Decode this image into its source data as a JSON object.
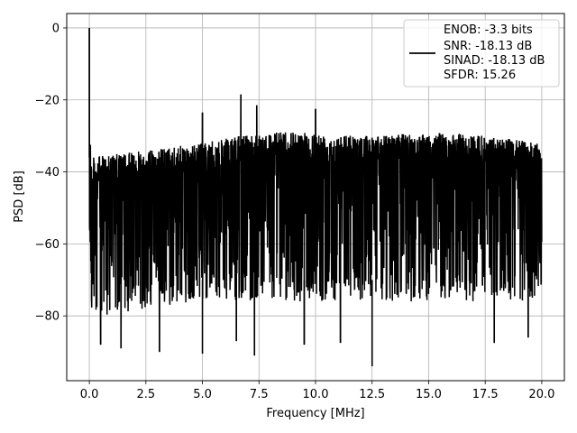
{
  "chart_data": {
    "type": "line",
    "title": "",
    "xlabel": "Frequency [MHz]",
    "ylabel": "PSD [dB]",
    "xlim": [
      -1.0,
      21.0
    ],
    "ylim": [
      -98,
      4
    ],
    "xticks": [
      0.0,
      2.5,
      5.0,
      7.5,
      10.0,
      12.5,
      15.0,
      17.5,
      20.0
    ],
    "xtick_labels": [
      "0.0",
      "2.5",
      "5.0",
      "7.5",
      "10.0",
      "12.5",
      "15.0",
      "17.5",
      "20.0"
    ],
    "yticks": [
      0,
      -20,
      -40,
      -60,
      -80
    ],
    "ytick_labels": [
      "0",
      "−20",
      "−40",
      "−60",
      "−80"
    ],
    "grid": true,
    "legend_position": "upper-right",
    "legend_lines": [
      "ENOB: -3.3 bits",
      "SNR: -18.13 dB",
      "SINAD: -18.13 dB",
      "SFDR: 15.26"
    ],
    "series": [
      {
        "color": "#000000",
        "x_range": [
          0.0,
          20.0
        ],
        "points": 2500,
        "noise_upper_envelope": [
          [
            0.0,
            -36
          ],
          [
            2.5,
            -34
          ],
          [
            5.0,
            -32
          ],
          [
            7.5,
            -29
          ],
          [
            10.0,
            -29
          ],
          [
            12.5,
            -30
          ],
          [
            15.0,
            -29
          ],
          [
            17.5,
            -30
          ],
          [
            20.0,
            -32
          ]
        ],
        "noise_lower_envelope": [
          [
            0.0,
            -75
          ],
          [
            2.5,
            -72
          ],
          [
            5.0,
            -70
          ],
          [
            7.5,
            -70
          ],
          [
            10.0,
            -70
          ],
          [
            12.5,
            -70
          ],
          [
            15.0,
            -70
          ],
          [
            17.5,
            -70
          ],
          [
            20.0,
            -70
          ]
        ],
        "peaks": [
          {
            "x": 0.0,
            "y": 0.0
          },
          {
            "x": 5.0,
            "y": -23.5
          },
          {
            "x": 6.7,
            "y": -18.5
          },
          {
            "x": 7.4,
            "y": -21.5
          },
          {
            "x": 10.0,
            "y": -22.5
          },
          {
            "x": 12.5,
            "y": -30.5
          }
        ],
        "dips": [
          {
            "x": 0.1,
            "y": -76
          },
          {
            "x": 0.5,
            "y": -88
          },
          {
            "x": 1.4,
            "y": -89
          },
          {
            "x": 3.1,
            "y": -90
          },
          {
            "x": 5.0,
            "y": -90.5
          },
          {
            "x": 6.5,
            "y": -87
          },
          {
            "x": 7.3,
            "y": -91
          },
          {
            "x": 9.5,
            "y": -88
          },
          {
            "x": 11.1,
            "y": -87.5
          },
          {
            "x": 12.5,
            "y": -94
          },
          {
            "x": 17.9,
            "y": -87.5
          },
          {
            "x": 19.4,
            "y": -86
          }
        ]
      }
    ]
  }
}
